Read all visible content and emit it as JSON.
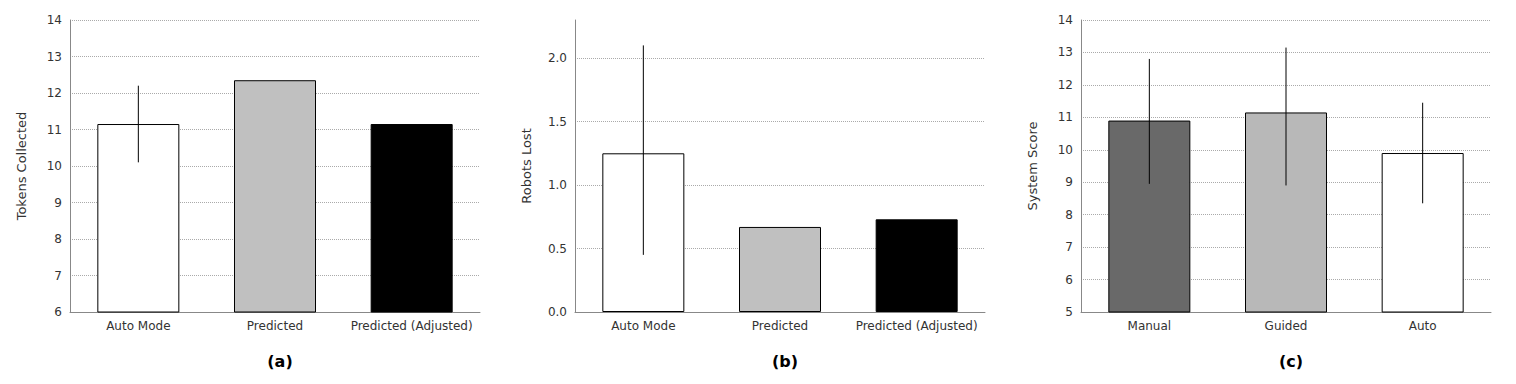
{
  "chart_data": [
    {
      "type": "bar",
      "categories": [
        "Auto Mode",
        "Predicted",
        "Predicted (Adjusted)"
      ],
      "values": [
        11.15,
        12.35,
        11.15
      ],
      "errors": [
        1.05,
        0,
        0
      ],
      "colors": [
        "#ffffff",
        "#c0c0c0",
        "#000000"
      ],
      "ylabel": "Tokens Collected",
      "ylim": [
        6,
        14
      ],
      "yticks": [
        6,
        7,
        8,
        9,
        10,
        11,
        12,
        13,
        14
      ],
      "label": "(a)",
      "grid": true
    },
    {
      "type": "bar",
      "categories": [
        "Auto Mode",
        "Predicted",
        "Predicted (Adjusted)"
      ],
      "values": [
        1.25,
        0.67,
        0.73
      ],
      "errors_upper": [
        0.85,
        0,
        0
      ],
      "errors_lower": [
        0.8,
        0,
        0
      ],
      "colors": [
        "#ffffff",
        "#c0c0c0",
        "#000000"
      ],
      "ylabel": "Robots Lost",
      "ylim": [
        0,
        2.3
      ],
      "yticks": [
        {
          "value": 0,
          "label": "0.0"
        },
        0.5,
        {
          "value": 1.0,
          "label": "1.0"
        },
        1.5,
        {
          "value": 2.0,
          "label": "2.0"
        }
      ],
      "label": "(b)",
      "grid": true
    },
    {
      "type": "bar",
      "categories": [
        "Manual",
        "Guided",
        "Auto"
      ],
      "values": [
        10.9,
        11.15,
        9.9
      ],
      "errors_upper": [
        1.9,
        2.0,
        1.55
      ],
      "errors_lower": [
        1.95,
        2.25,
        1.55
      ],
      "colors": [
        "#696969",
        "#b8b8b8",
        "#ffffff"
      ],
      "ylabel": "System Score",
      "ylim": [
        5,
        14
      ],
      "yticks": [
        5,
        6,
        7,
        8,
        9,
        10,
        11,
        12,
        13,
        14
      ],
      "label": "(c)",
      "grid": true
    }
  ]
}
